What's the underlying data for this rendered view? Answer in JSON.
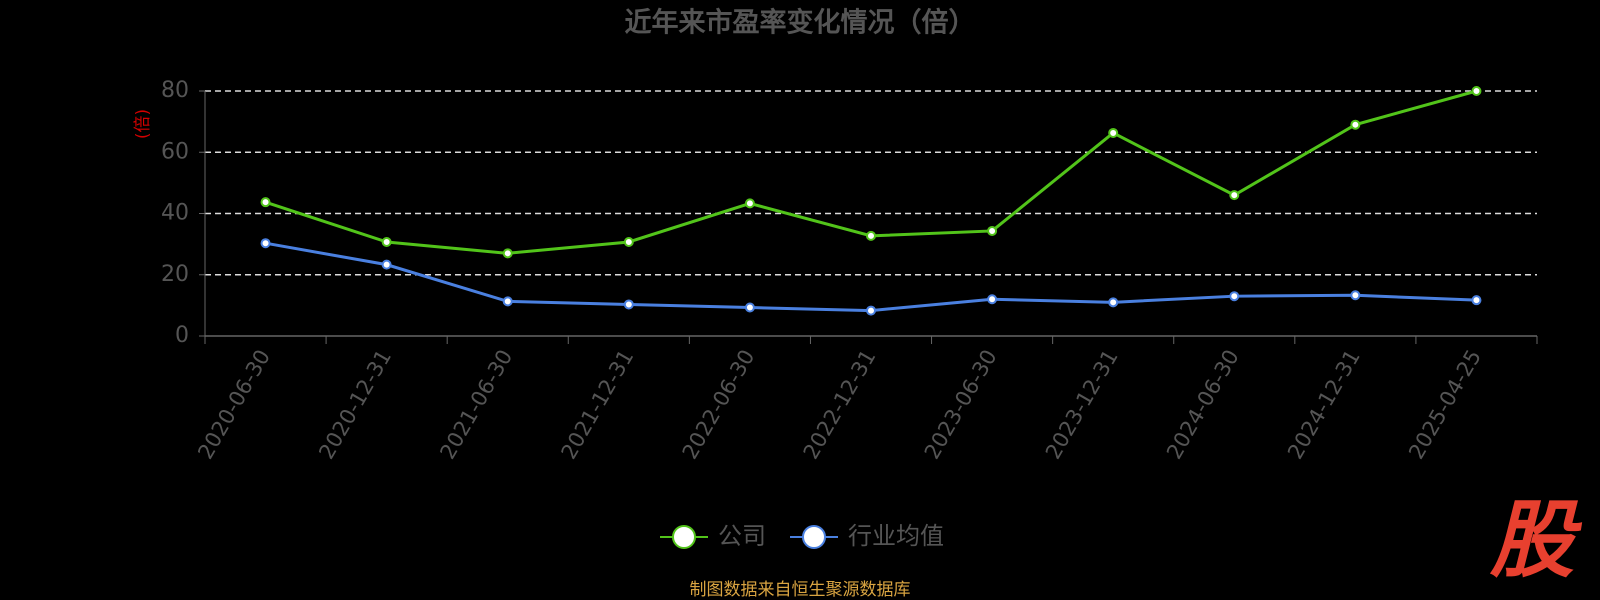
{
  "chart_data": {
    "type": "line",
    "title": "近年来市盈率变化情况（倍）",
    "y_label": "(倍)",
    "categories": [
      "2020-06-30",
      "2020-12-31",
      "2021-06-30",
      "2021-12-31",
      "2022-06-30",
      "2022-12-31",
      "2023-06-30",
      "2023-12-31",
      "2024-06-30",
      "2024-12-31",
      "2025-04-25"
    ],
    "series": [
      {
        "name": "公司",
        "color": "#52c41a",
        "values": [
          43.7,
          30.7,
          27,
          30.7,
          43.3,
          32.7,
          34.3,
          66.3,
          46,
          69,
          80
        ]
      },
      {
        "name": "行业均值",
        "color": "#4a80e0",
        "values": [
          30.3,
          23.3,
          11.3,
          10.3,
          9.3,
          8.3,
          12,
          11,
          13,
          13.3,
          11.7
        ]
      }
    ],
    "ylim": [
      0,
      80
    ],
    "yticks": [
      0,
      20,
      40,
      60,
      80
    ],
    "grid": true,
    "source": "制图数据来自恒生聚源数据库",
    "watermark": "股"
  }
}
